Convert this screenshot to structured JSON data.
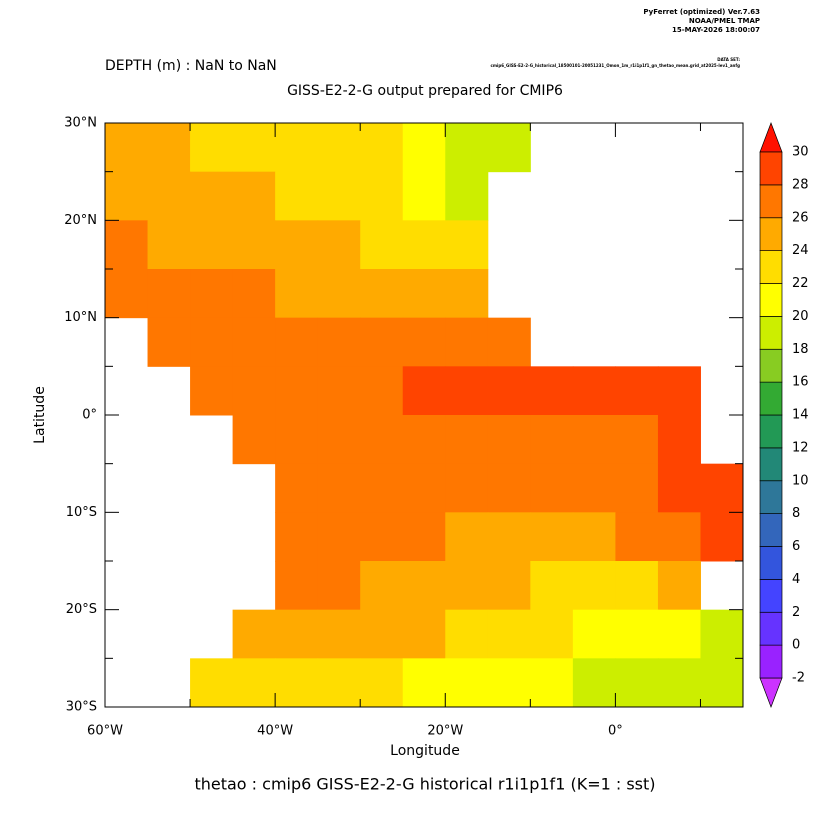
{
  "chart_data": {
    "type": "heatmap",
    "credit": [
      "PyFerret (optimized) Ver.7.63",
      "NOAA/PMEL TMAP",
      "15-MAY-2026 18:00:07"
    ],
    "dataset_label": "DATA SET:",
    "dataset": "cmip6_GISS-E2-2-G_historical_18500101-20051231_Omon_1m_r1i1p1f1_gn_thetao_mean.grid_at2025-lev1_anfg",
    "subtitle": "DEPTH (m) : NaN to NaN",
    "title": "GISS-E2-2-G output prepared for CMIP6",
    "x_label": "Longitude",
    "y_label": "Latitude",
    "footer": "thetao : cmip6 GISS-E2-2-G historical r1i1p1f1   (K=1 : sst)",
    "xlim": [
      -60,
      15
    ],
    "ylim": [
      -30,
      30
    ],
    "xticks": [
      {
        "value": -60,
        "label": "60°W"
      },
      {
        "value": -40,
        "label": "40°W"
      },
      {
        "value": -20,
        "label": "20°W"
      },
      {
        "value": 0,
        "label": "0°"
      }
    ],
    "xminorticks": [
      -50,
      -30,
      -10,
      10
    ],
    "yticks": [
      {
        "value": 30,
        "label": "30°N"
      },
      {
        "value": 20,
        "label": "20°N"
      },
      {
        "value": 10,
        "label": "10°N"
      },
      {
        "value": 0,
        "label": "0°"
      },
      {
        "value": -10,
        "label": "10°S"
      },
      {
        "value": -20,
        "label": "20°S"
      },
      {
        "value": -30,
        "label": "30°S"
      }
    ],
    "yminorticks": [
      25,
      15,
      5,
      -5,
      -15,
      -25
    ],
    "lon": [
      -57.5,
      -52.5,
      -47.5,
      -42.5,
      -37.5,
      -32.5,
      -27.5,
      -22.5,
      -17.5,
      -12.5,
      -7.5,
      -2.5,
      2.5,
      7.5,
      12.5
    ],
    "lat": [
      27.5,
      22.5,
      17.5,
      12.5,
      7.5,
      2.5,
      -2.5,
      -7.5,
      -12.5,
      -17.5,
      -22.5,
      -27.5
    ],
    "cell": [
      5,
      5
    ],
    "values": [
      [
        24,
        24,
        23.5,
        23,
        23,
        22.5,
        22,
        21,
        19,
        19.5,
        null,
        null,
        null,
        null,
        null
      ],
      [
        25,
        24.5,
        24,
        24,
        23.5,
        23,
        22,
        21,
        19.5,
        null,
        null,
        null,
        null,
        null,
        null
      ],
      [
        26,
        25.5,
        25,
        25,
        24.5,
        24,
        23.5,
        23,
        22,
        null,
        null,
        null,
        null,
        null,
        null
      ],
      [
        27,
        26.5,
        26,
        26,
        25.5,
        25.5,
        25,
        24.5,
        24,
        null,
        null,
        null,
        null,
        null,
        null
      ],
      [
        null,
        27.5,
        27,
        27,
        27,
        27,
        26.5,
        26,
        26,
        26.5,
        null,
        null,
        null,
        null,
        null
      ],
      [
        null,
        null,
        27.5,
        27.5,
        27.5,
        27,
        27,
        28.2,
        28.2,
        28.2,
        28.2,
        28.2,
        28.2,
        28.5,
        null
      ],
      [
        null,
        null,
        null,
        27.5,
        27,
        27,
        27,
        27,
        26.5,
        26.5,
        26.5,
        27,
        27.5,
        28.5,
        null
      ],
      [
        null,
        null,
        null,
        null,
        27.5,
        27,
        27,
        26.5,
        26.5,
        26.5,
        26.5,
        26.5,
        27,
        28,
        28.5
      ],
      [
        null,
        null,
        null,
        null,
        27,
        26.5,
        26.5,
        26,
        25.5,
        25.5,
        25.5,
        25.5,
        26,
        27,
        28
      ],
      [
        null,
        null,
        null,
        null,
        26.5,
        26,
        25.5,
        25,
        24.5,
        24,
        23.5,
        23.5,
        23.5,
        24,
        null
      ],
      [
        null,
        null,
        null,
        25.5,
        25.5,
        25,
        24.5,
        24,
        23,
        22.5,
        22,
        21.5,
        21,
        20.5,
        19.5
      ],
      [
        null,
        null,
        23,
        23,
        23,
        22.5,
        22,
        21.5,
        21,
        20.5,
        20,
        19.5,
        19,
        18.5,
        18
      ]
    ],
    "colorbar": {
      "levels": [
        -2,
        0,
        2,
        4,
        6,
        8,
        10,
        12,
        14,
        16,
        18,
        20,
        22,
        24,
        26,
        28,
        30
      ],
      "colors": [
        "#cc33ff",
        "#9922ff",
        "#6633ff",
        "#4444ff",
        "#3355dd",
        "#3366bb",
        "#2e7799",
        "#228877",
        "#229955",
        "#33aa33",
        "#88cc22",
        "#ccee00",
        "#ffff00",
        "#ffdd00",
        "#ffaa00",
        "#ff7700",
        "#ff4400",
        "#ff1100"
      ]
    }
  }
}
